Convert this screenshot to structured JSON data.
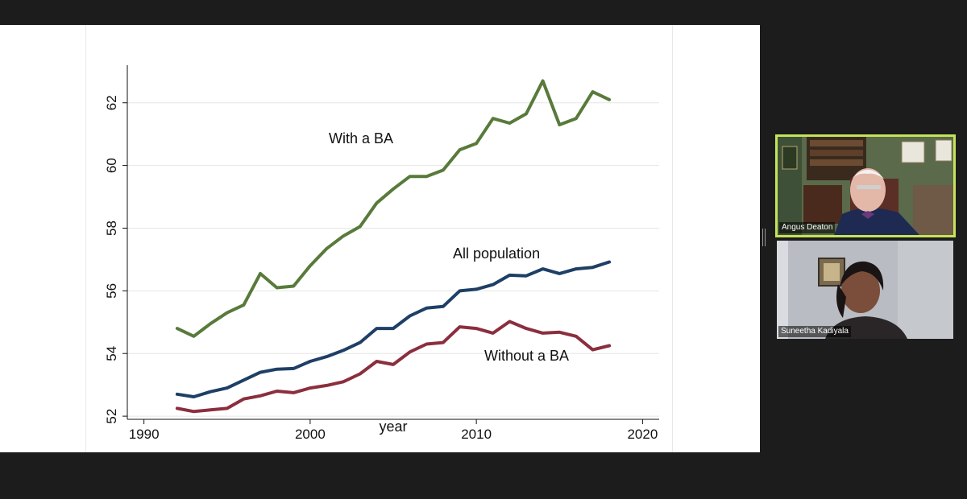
{
  "app": {
    "type": "video-meeting-screen-share"
  },
  "chart_data": {
    "type": "line",
    "title": "",
    "xlabel": "year",
    "ylabel": "",
    "xlim": [
      1989,
      2021
    ],
    "ylim": [
      51.9,
      63.2
    ],
    "xticks": [
      1990,
      2000,
      2010,
      2020
    ],
    "yticks": [
      52,
      54,
      56,
      58,
      60,
      62
    ],
    "x": [
      1992,
      1993,
      1994,
      1995,
      1996,
      1997,
      1998,
      1999,
      2000,
      2001,
      2002,
      2003,
      2004,
      2005,
      2006,
      2007,
      2008,
      2009,
      2010,
      2011,
      2012,
      2013,
      2014,
      2015,
      2016,
      2017,
      2018
    ],
    "series": [
      {
        "name": "With a BA",
        "color": "#587a3a",
        "values": [
          54.8,
          54.55,
          54.95,
          55.3,
          55.55,
          56.55,
          56.1,
          56.15,
          56.8,
          57.35,
          57.75,
          58.05,
          58.8,
          59.25,
          59.65,
          59.65,
          59.85,
          60.5,
          60.7,
          61.5,
          61.35,
          61.65,
          62.7,
          61.3,
          61.5,
          62.35,
          62.1
        ]
      },
      {
        "name": "All population",
        "color": "#1e3f66",
        "values": [
          52.7,
          52.62,
          52.78,
          52.9,
          53.15,
          53.4,
          53.5,
          53.52,
          53.75,
          53.9,
          54.1,
          54.35,
          54.8,
          54.8,
          55.2,
          55.45,
          55.5,
          56.0,
          56.05,
          56.2,
          56.5,
          56.48,
          56.7,
          56.55,
          56.7,
          56.75,
          56.92
        ]
      },
      {
        "name": "Without a BA",
        "color": "#8b2e3e",
        "values": [
          52.25,
          52.15,
          52.2,
          52.25,
          52.55,
          52.65,
          52.8,
          52.75,
          52.9,
          52.98,
          53.1,
          53.35,
          53.75,
          53.65,
          54.05,
          54.3,
          54.35,
          54.85,
          54.8,
          54.65,
          55.02,
          54.8,
          54.65,
          54.68,
          54.55,
          54.12,
          54.25
        ]
      }
    ],
    "grid": true
  },
  "participants": [
    {
      "name": "Angus Deaton",
      "active_speaker": true
    },
    {
      "name": "Suneetha Kadiyala",
      "active_speaker": false
    }
  ]
}
